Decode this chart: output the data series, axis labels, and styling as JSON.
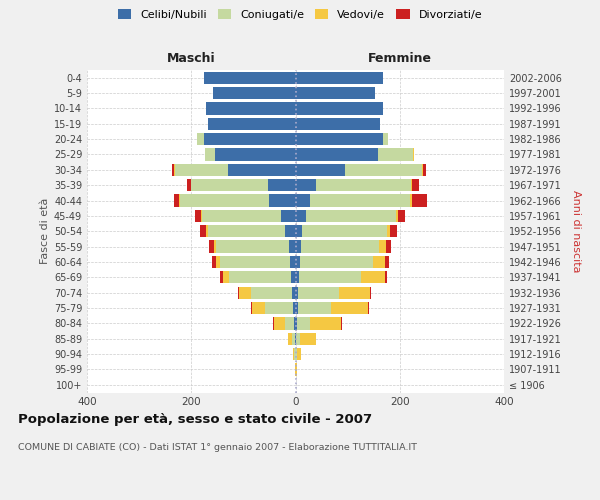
{
  "age_groups": [
    "100+",
    "95-99",
    "90-94",
    "85-89",
    "80-84",
    "75-79",
    "70-74",
    "65-69",
    "60-64",
    "55-59",
    "50-54",
    "45-49",
    "40-44",
    "35-39",
    "30-34",
    "25-29",
    "20-24",
    "15-19",
    "10-14",
    "5-9",
    "0-4"
  ],
  "birth_years": [
    "≤ 1906",
    "1907-1911",
    "1912-1916",
    "1917-1921",
    "1922-1926",
    "1927-1931",
    "1932-1936",
    "1937-1941",
    "1942-1946",
    "1947-1951",
    "1952-1956",
    "1957-1961",
    "1962-1966",
    "1967-1971",
    "1972-1976",
    "1977-1981",
    "1982-1986",
    "1987-1991",
    "1992-1996",
    "1997-2001",
    "2002-2006"
  ],
  "maschi": {
    "celibi": [
      0,
      0,
      0,
      1,
      2,
      4,
      6,
      8,
      10,
      12,
      20,
      28,
      50,
      52,
      130,
      155,
      175,
      168,
      172,
      158,
      175
    ],
    "coniugati": [
      0,
      0,
      2,
      5,
      18,
      55,
      80,
      120,
      135,
      140,
      148,
      152,
      172,
      148,
      102,
      18,
      14,
      0,
      0,
      0,
      0
    ],
    "vedovi": [
      0,
      1,
      2,
      8,
      22,
      25,
      22,
      12,
      8,
      5,
      3,
      2,
      1,
      1,
      1,
      0,
      0,
      0,
      0,
      0,
      0
    ],
    "divorziati": [
      0,
      0,
      0,
      0,
      1,
      2,
      3,
      5,
      8,
      8,
      12,
      10,
      10,
      8,
      3,
      1,
      0,
      0,
      0,
      0,
      0
    ]
  },
  "femmine": {
    "nubili": [
      0,
      0,
      0,
      1,
      2,
      4,
      4,
      6,
      8,
      10,
      13,
      20,
      28,
      40,
      95,
      158,
      168,
      162,
      168,
      153,
      168
    ],
    "coniugate": [
      0,
      0,
      2,
      8,
      25,
      65,
      80,
      120,
      140,
      150,
      162,
      172,
      192,
      182,
      148,
      68,
      10,
      0,
      0,
      0,
      0
    ],
    "vedove": [
      0,
      2,
      8,
      30,
      60,
      70,
      58,
      45,
      24,
      14,
      7,
      5,
      3,
      2,
      2,
      1,
      0,
      0,
      0,
      0,
      0
    ],
    "divorziate": [
      0,
      0,
      0,
      0,
      2,
      2,
      3,
      5,
      8,
      10,
      12,
      14,
      30,
      12,
      5,
      1,
      0,
      0,
      0,
      0,
      0
    ]
  },
  "colors": {
    "celibi": "#3d6ea8",
    "coniugati": "#c5d9a0",
    "vedovi": "#f5c842",
    "divorziati": "#cc2020"
  },
  "legend_labels": [
    "Celibi/Nubili",
    "Coniugati/e",
    "Vedovi/e",
    "Divorziati/e"
  ],
  "title": "Popolazione per età, sesso e stato civile - 2007",
  "subtitle": "COMUNE DI CABIATE (CO) - Dati ISTAT 1° gennaio 2007 - Elaborazione TUTTITALIA.IT",
  "xlabel_left": "Maschi",
  "xlabel_right": "Femmine",
  "ylabel_left": "Fasce di età",
  "ylabel_right": "Anni di nascita",
  "xlim": 400,
  "bg_color": "#f0f0f0",
  "plot_bg": "#ffffff"
}
